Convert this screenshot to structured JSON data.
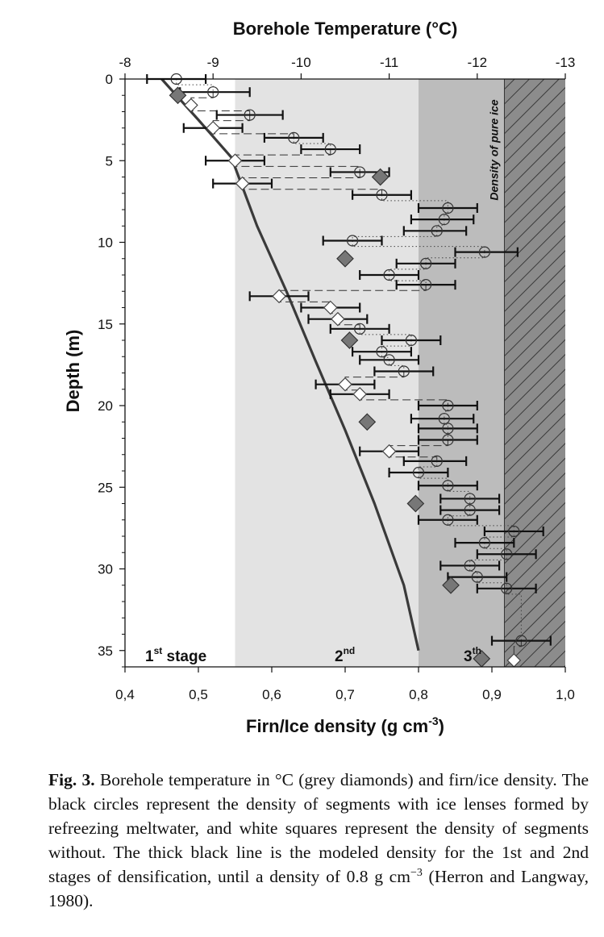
{
  "chart_data": {
    "type": "scatter",
    "title": "",
    "x_top_label": "Borehole Temperature (°C)",
    "x_top_ticks": [
      "-8",
      "-9",
      "-10",
      "-11",
      "-12",
      "-13"
    ],
    "x_top_lim": [
      -8,
      -13
    ],
    "xlabel": "Firn/Ice density (g cm-3)",
    "xlim": [
      0.4,
      1.0
    ],
    "x_ticks": [
      "0,4",
      "0,5",
      "0,6",
      "0,7",
      "0,8",
      "0,9",
      "1,0"
    ],
    "ylabel": "Depth (m)",
    "ylim": [
      0,
      36
    ],
    "y_ticks": [
      "0",
      "5",
      "10",
      "15",
      "20",
      "25",
      "30",
      "35"
    ],
    "stages": [
      {
        "label": "1",
        "sup": "st",
        "suffix": " stage",
        "x0": 0.4,
        "x1": 0.55,
        "color": "#ffffff"
      },
      {
        "label": "2",
        "sup": "nd",
        "suffix": "",
        "x0": 0.55,
        "x1": 0.8,
        "color": "#e3e3e3"
      },
      {
        "label": "3",
        "sup": "th",
        "suffix": "",
        "x0": 0.8,
        "x1": 0.917,
        "color": "#bcbcbc"
      }
    ],
    "ice_label": "Density of pure ice",
    "ice_density": 0.917,
    "series": [
      {
        "name": "Borehole temperature",
        "marker": "filled-diamond",
        "temperature_c": [
          -8.6,
          -10.9,
          -10.5,
          -10.55,
          -10.75,
          -11.3,
          -11.7,
          -12.05
        ],
        "depth_m": [
          1,
          6,
          11,
          16,
          21,
          26,
          31,
          35.5
        ]
      },
      {
        "name": "Segments with ice lenses",
        "marker": "circle",
        "points": [
          {
            "density": 0.47,
            "depth": 0.0,
            "xerr": [
              0.43,
              0.51
            ]
          },
          {
            "density": 0.52,
            "depth": 0.8,
            "xerr": [
              0.475,
              0.57
            ]
          },
          {
            "density": 0.57,
            "depth": 2.2,
            "xerr": [
              0.525,
              0.615
            ]
          },
          {
            "density": 0.63,
            "depth": 3.6,
            "xerr": [
              0.59,
              0.67
            ]
          },
          {
            "density": 0.68,
            "depth": 4.3,
            "xerr": [
              0.64,
              0.72
            ]
          },
          {
            "density": 0.72,
            "depth": 5.7,
            "xerr": [
              0.68,
              0.76
            ]
          },
          {
            "density": 0.75,
            "depth": 7.1,
            "xerr": [
              0.71,
              0.79
            ]
          },
          {
            "density": 0.84,
            "depth": 7.9,
            "xerr": [
              0.8,
              0.88
            ]
          },
          {
            "density": 0.835,
            "depth": 8.6,
            "xerr": [
              0.79,
              0.875
            ]
          },
          {
            "density": 0.825,
            "depth": 9.3,
            "xerr": [
              0.78,
              0.865
            ]
          },
          {
            "density": 0.71,
            "depth": 9.9,
            "xerr": [
              0.67,
              0.75
            ]
          },
          {
            "density": 0.89,
            "depth": 10.6,
            "xerr": [
              0.85,
              0.935
            ]
          },
          {
            "density": 0.81,
            "depth": 11.3,
            "xerr": [
              0.77,
              0.85
            ]
          },
          {
            "density": 0.76,
            "depth": 12.0,
            "xerr": [
              0.72,
              0.8
            ]
          },
          {
            "density": 0.81,
            "depth": 12.6,
            "xerr": [
              0.77,
              0.85
            ]
          },
          {
            "density": 0.72,
            "depth": 15.3,
            "xerr": [
              0.68,
              0.76
            ]
          },
          {
            "density": 0.79,
            "depth": 16.0,
            "xerr": [
              0.75,
              0.83
            ]
          },
          {
            "density": 0.75,
            "depth": 16.7,
            "xerr": [
              0.71,
              0.79
            ]
          },
          {
            "density": 0.76,
            "depth": 17.2,
            "xerr": [
              0.72,
              0.8
            ]
          },
          {
            "density": 0.78,
            "depth": 17.9,
            "xerr": [
              0.74,
              0.82
            ]
          },
          {
            "density": 0.84,
            "depth": 20.0,
            "xerr": [
              0.8,
              0.88
            ]
          },
          {
            "density": 0.835,
            "depth": 20.8,
            "xerr": [
              0.79,
              0.875
            ]
          },
          {
            "density": 0.84,
            "depth": 21.4,
            "xerr": [
              0.8,
              0.88
            ]
          },
          {
            "density": 0.84,
            "depth": 22.1,
            "xerr": [
              0.8,
              0.88
            ]
          },
          {
            "density": 0.825,
            "depth": 23.4,
            "xerr": [
              0.78,
              0.865
            ]
          },
          {
            "density": 0.8,
            "depth": 24.1,
            "xerr": [
              0.76,
              0.84
            ]
          },
          {
            "density": 0.84,
            "depth": 24.9,
            "xerr": [
              0.8,
              0.88
            ]
          },
          {
            "density": 0.87,
            "depth": 25.7,
            "xerr": [
              0.83,
              0.91
            ]
          },
          {
            "density": 0.87,
            "depth": 26.4,
            "xerr": [
              0.83,
              0.91
            ]
          },
          {
            "density": 0.84,
            "depth": 27.0,
            "xerr": [
              0.8,
              0.88
            ]
          },
          {
            "density": 0.93,
            "depth": 27.7,
            "xerr": [
              0.89,
              0.97
            ]
          },
          {
            "density": 0.89,
            "depth": 28.4,
            "xerr": [
              0.85,
              0.93
            ]
          },
          {
            "density": 0.92,
            "depth": 29.1,
            "xerr": [
              0.88,
              0.96
            ]
          },
          {
            "density": 0.87,
            "depth": 29.8,
            "xerr": [
              0.83,
              0.91
            ]
          },
          {
            "density": 0.88,
            "depth": 30.5,
            "xerr": [
              0.84,
              0.92
            ]
          },
          {
            "density": 0.92,
            "depth": 31.2,
            "xerr": [
              0.88,
              0.96
            ]
          },
          {
            "density": 0.94,
            "depth": 34.4,
            "xerr": [
              0.9,
              0.98
            ]
          }
        ]
      },
      {
        "name": "Segments without ice lenses",
        "marker": "open-diamond",
        "points": [
          {
            "density": 0.49,
            "depth": 1.6
          },
          {
            "density": 0.52,
            "depth": 3.0,
            "xerr": [
              0.48,
              0.56
            ]
          },
          {
            "density": 0.55,
            "depth": 5.0,
            "xerr": [
              0.51,
              0.59
            ]
          },
          {
            "density": 0.56,
            "depth": 6.4,
            "xerr": [
              0.52,
              0.6
            ]
          },
          {
            "density": 0.61,
            "depth": 13.3,
            "xerr": [
              0.57,
              0.65
            ]
          },
          {
            "density": 0.68,
            "depth": 14.0,
            "xerr": [
              0.64,
              0.72
            ]
          },
          {
            "density": 0.69,
            "depth": 14.7,
            "xerr": [
              0.65,
              0.73
            ]
          },
          {
            "density": 0.7,
            "depth": 18.7,
            "xerr": [
              0.66,
              0.74
            ]
          },
          {
            "density": 0.72,
            "depth": 19.3,
            "xerr": [
              0.68,
              0.76
            ]
          },
          {
            "density": 0.76,
            "depth": 22.8,
            "xerr": [
              0.72,
              0.8
            ]
          },
          {
            "density": 0.93,
            "depth": 35.6
          }
        ]
      },
      {
        "name": "Modeled density",
        "marker": "line",
        "density": [
          0.45,
          0.5,
          0.545,
          0.58,
          0.62,
          0.66,
          0.7,
          0.74,
          0.78,
          0.8
        ],
        "depth": [
          0,
          2.5,
          4.8,
          9,
          13,
          17.3,
          21.5,
          26,
          31,
          35
        ]
      }
    ]
  },
  "caption": {
    "fig_label": "Fig. 3.",
    "text": "Borehole temperature in °C (grey diamonds) and firn/ice density. The black circles represent the density of segments with ice lenses formed by refreezing meltwater, and white squares represent the density of segments without. The thick black line is the modeled density for the 1st and 2nd stages of densification, until a density of 0.8 g cm",
    "unit_exponent": "−3",
    "text_end": " (Herron and Langway, 1980)."
  }
}
